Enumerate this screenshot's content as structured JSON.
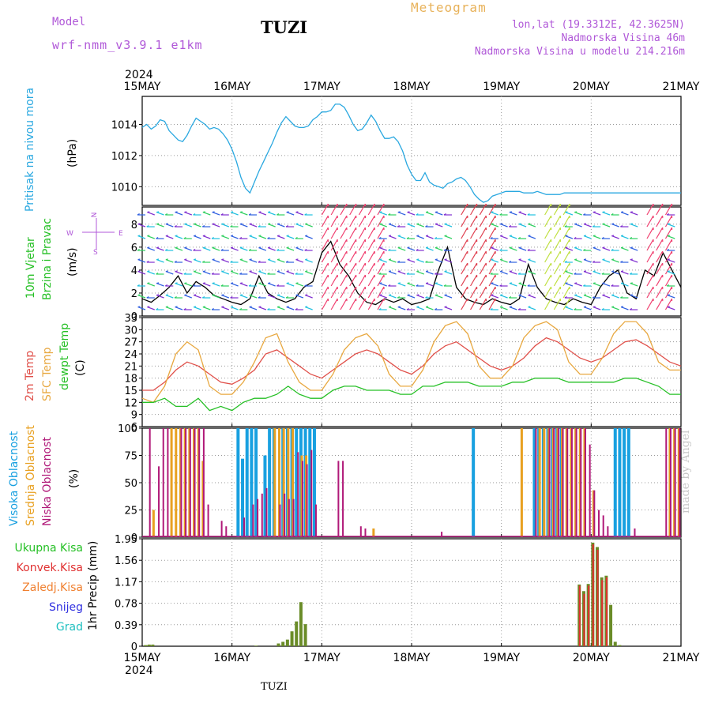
{
  "header": {
    "model_label": "Model",
    "model_name": "wrf-nmm_v3.9.1 e1km",
    "station": "TUZI",
    "meteogram_label": "Meteogram",
    "coords": "lon,lat (19.3312E, 42.3625N)",
    "elevation": "Nadmorska Visina 46m",
    "model_elevation": "Nadmorska Visina u modelu 214.216m",
    "year": "2024"
  },
  "footer": {
    "station": "TUZI",
    "credit": "made by Angel"
  },
  "time_axis": {
    "labels": [
      "15MAY",
      "16MAY",
      "17MAY",
      "18MAY",
      "19MAY",
      "20MAY",
      "21MAY"
    ],
    "year": "2024"
  },
  "panels": {
    "pressure": {
      "ylabel_main": "Pritisak na nivou mora",
      "unit": "(hPa)"
    },
    "wind": {
      "ylabel_a": "10m Vjetar",
      "ylabel_b": "Brzina i Pravac",
      "unit": "(m/s)",
      "compass_top": "N",
      "compass_w": "W",
      "compass_e": "E",
      "compass_s": "S"
    },
    "temp": {
      "label_2m": "2m Temp",
      "label_sfc": "SFC Temp",
      "label_dew": "dewpt Temp",
      "unit": "(C)"
    },
    "cloud": {
      "label_high": "Visoka Oblacnost",
      "label_mid": "Srednja Oblacnost",
      "label_low": "Niska Oblacnost",
      "unit": "(%)"
    },
    "precip": {
      "unit": "1hr Precip (mm)",
      "legend": [
        "Ukupna Kisa",
        "Konvek.Kisa",
        "Zaledj.Kisa",
        "Snijeg",
        "Grad"
      ]
    }
  },
  "colors": {
    "pressure": "#2aa8e0",
    "temp2m": "#e0504a",
    "sfc": "#e8a840",
    "dew": "#26c026",
    "high_cloud": "#18a0e0",
    "mid_cloud": "#e8a020",
    "low_cloud": "#b01878",
    "total_rain": "#6a8c28",
    "conv_rain": "#e03030",
    "frz_rain": "#f08030",
    "snow": "#3030e0",
    "hail": "#20c0c0",
    "header": "#b058d8",
    "meteogram": "#e8b25a"
  },
  "chart_data": [
    {
      "type": "line",
      "panel": "pressure",
      "ylim": [
        1008.8,
        1015.8
      ],
      "yticks": [
        "1010",
        "1012",
        "1014"
      ],
      "ytick_values": [
        1010,
        1012,
        1014
      ],
      "x_days": [
        0,
        0.05,
        0.1,
        0.15,
        0.2,
        0.25,
        0.3,
        0.35,
        0.4,
        0.45,
        0.5,
        0.55,
        0.6,
        0.65,
        0.7,
        0.75,
        0.8,
        0.85,
        0.9,
        0.95,
        1.0,
        1.05,
        1.1,
        1.15,
        1.2,
        1.25,
        1.3,
        1.35,
        1.4,
        1.45,
        1.5,
        1.55,
        1.6,
        1.65,
        1.7,
        1.75,
        1.8,
        1.85,
        1.9,
        1.95,
        2.0,
        2.05,
        2.1,
        2.15,
        2.2,
        2.25,
        2.3,
        2.35,
        2.4,
        2.45,
        2.5,
        2.55,
        2.6,
        2.65,
        2.7,
        2.75,
        2.8,
        2.85,
        2.9,
        2.95,
        3.0,
        3.05,
        3.1,
        3.15,
        3.2,
        3.25,
        3.3,
        3.35,
        3.4,
        3.45,
        3.5,
        3.55,
        3.6,
        3.65,
        3.7,
        3.75,
        3.8,
        3.85,
        3.9,
        3.95,
        4.0,
        4.05,
        4.1,
        4.15,
        4.2,
        4.25,
        4.3,
        4.35,
        4.4,
        4.45,
        4.5,
        4.55,
        4.6,
        4.65,
        4.7,
        4.75,
        4.8,
        4.85,
        4.9,
        4.95,
        5.0,
        5.05,
        5.1,
        5.15,
        5.2,
        5.25,
        5.3,
        5.35,
        5.4,
        5.45,
        5.5,
        5.55,
        5.6,
        5.65,
        5.7,
        5.75,
        5.8,
        5.85,
        5.9,
        5.95,
        6.0
      ],
      "series": [
        {
          "values": [
            1013.8,
            1014.0,
            1013.7,
            1013.9,
            1014.3,
            1014.2,
            1013.6,
            1013.3,
            1013.0,
            1012.9,
            1013.3,
            1013.9,
            1014.4,
            1014.2,
            1014.0,
            1013.7,
            1013.8,
            1013.7,
            1013.4,
            1013.0,
            1012.4,
            1011.6,
            1010.6,
            1009.9,
            1009.6,
            1010.3,
            1011.0,
            1011.6,
            1012.2,
            1012.8,
            1013.5,
            1014.1,
            1014.5,
            1014.2,
            1013.9,
            1013.8,
            1013.8,
            1013.9,
            1014.3,
            1014.5,
            1014.8,
            1014.8,
            1014.9,
            1015.3,
            1015.3,
            1015.1,
            1014.6,
            1014.0,
            1013.6,
            1013.7,
            1014.1,
            1014.6,
            1014.2,
            1013.6,
            1013.1,
            1013.1,
            1013.2,
            1012.9,
            1012.3,
            1011.4,
            1010.8,
            1010.4,
            1010.4,
            1010.9,
            1010.3,
            1010.1,
            1010.0,
            1009.9,
            1010.2,
            1010.3,
            1010.5,
            1010.6,
            1010.4,
            1010.0,
            1009.5,
            1009.2,
            1009.0,
            1009.1,
            1009.4,
            1009.5,
            1009.6,
            1009.7,
            1009.7,
            1009.7,
            1009.7,
            1009.6,
            1009.6,
            1009.6,
            1009.7,
            1009.6,
            1009.5,
            1009.5,
            1009.5,
            1009.5,
            1009.6,
            1009.6,
            1009.6,
            1009.6,
            1009.6,
            1009.6,
            1009.6,
            1009.6,
            1009.6,
            1009.6,
            1009.6,
            1009.6,
            1009.6,
            1009.6,
            1009.6,
            1009.6,
            1009.6,
            1009.6,
            1009.6,
            1009.6,
            1009.6,
            1009.6,
            1009.6,
            1009.6,
            1009.6,
            1009.6,
            1009.6
          ]
        }
      ]
    },
    {
      "type": "line",
      "panel": "wind_speed",
      "ylim": [
        0,
        9.5
      ],
      "yticks": [
        "0",
        "2",
        "4",
        "6",
        "8"
      ],
      "ytick_values": [
        0,
        2,
        4,
        6,
        8
      ],
      "x_days": [
        0,
        0.1,
        0.2,
        0.3,
        0.4,
        0.5,
        0.6,
        0.7,
        0.8,
        0.9,
        1.0,
        1.1,
        1.2,
        1.3,
        1.4,
        1.5,
        1.6,
        1.7,
        1.8,
        1.9,
        2.0,
        2.1,
        2.2,
        2.3,
        2.4,
        2.5,
        2.6,
        2.7,
        2.8,
        2.9,
        3.0,
        3.1,
        3.2,
        3.3,
        3.4,
        3.5,
        3.6,
        3.7,
        3.8,
        3.9,
        4.0,
        4.1,
        4.2,
        4.3,
        4.4,
        4.5,
        4.6,
        4.7,
        4.8,
        4.9,
        5.0,
        5.1,
        5.2,
        5.3,
        5.4,
        5.5,
        5.6,
        5.7,
        5.8,
        5.9,
        6.0
      ],
      "series": [
        {
          "name": "",
          "values": [
            1.5,
            1.2,
            1.8,
            2.5,
            3.5,
            2.0,
            3.0,
            2.5,
            1.8,
            1.5,
            1.2,
            1.0,
            1.5,
            3.5,
            2.0,
            1.5,
            1.2,
            1.5,
            2.5,
            3.0,
            5.5,
            6.5,
            4.5,
            3.5,
            2.0,
            1.2,
            1.0,
            1.5,
            1.2,
            1.5,
            1.0,
            1.2,
            1.5,
            4.0,
            6.0,
            2.5,
            1.5,
            1.2,
            1.0,
            1.5,
            1.2,
            1.0,
            1.5,
            4.5,
            2.5,
            1.5,
            1.2,
            1.0,
            1.5,
            1.2,
            1.0,
            2.5,
            3.5,
            4.0,
            2.0,
            1.5,
            4.0,
            3.5,
            5.5,
            4.0,
            2.5
          ]
        }
      ]
    },
    {
      "type": "line",
      "panel": "temperature",
      "ylim": [
        6,
        33
      ],
      "yticks": [
        "6",
        "9",
        "12",
        "15",
        "18",
        "21",
        "24",
        "27",
        "30",
        "33"
      ],
      "ytick_values": [
        6,
        9,
        12,
        15,
        18,
        21,
        24,
        27,
        30,
        33
      ],
      "x_days": [
        0,
        0.125,
        0.25,
        0.375,
        0.5,
        0.625,
        0.75,
        0.875,
        1.0,
        1.125,
        1.25,
        1.375,
        1.5,
        1.625,
        1.75,
        1.875,
        2.0,
        2.125,
        2.25,
        2.375,
        2.5,
        2.625,
        2.75,
        2.875,
        3.0,
        3.125,
        3.25,
        3.375,
        3.5,
        3.625,
        3.75,
        3.875,
        4.0,
        4.125,
        4.25,
        4.375,
        4.5,
        4.625,
        4.75,
        4.875,
        5.0,
        5.125,
        5.25,
        5.375,
        5.5,
        5.625,
        5.75,
        5.875,
        6.0
      ],
      "series": [
        {
          "name": "2m Temp",
          "values": [
            15,
            15,
            17,
            20,
            22,
            21,
            19,
            17,
            16.5,
            18,
            20,
            24,
            25,
            23,
            21,
            19,
            18,
            20,
            22,
            24,
            25,
            24,
            22,
            20,
            19,
            21,
            24,
            26,
            27,
            25,
            23,
            21,
            20,
            21,
            23,
            26,
            28,
            27,
            25,
            23,
            22,
            23,
            25,
            27,
            27.5,
            26,
            24,
            22,
            21
          ]
        },
        {
          "name": "SFC Temp",
          "values": [
            13,
            12,
            16,
            24,
            27,
            25,
            16,
            14,
            14,
            17,
            22,
            28,
            29,
            22,
            17,
            15,
            15,
            19,
            25,
            28,
            29,
            26,
            19,
            16,
            16,
            20,
            27,
            31,
            32,
            29,
            21,
            18,
            18,
            21,
            28,
            31,
            32,
            30,
            22,
            19,
            19,
            23,
            29,
            32,
            32,
            29,
            22,
            20,
            20
          ]
        },
        {
          "name": "dewpt Temp",
          "values": [
            12,
            12,
            13,
            11,
            11,
            13,
            10,
            11,
            10,
            12,
            13,
            13,
            14,
            16,
            14,
            13,
            13,
            15,
            16,
            16,
            15,
            15,
            15,
            14,
            14,
            16,
            16,
            17,
            17,
            17,
            16,
            16,
            16,
            17,
            17,
            18,
            18,
            18,
            17,
            17,
            17,
            17,
            17,
            18,
            18,
            17,
            16,
            14,
            14
          ]
        }
      ]
    },
    {
      "type": "bar",
      "panel": "cloud_cover",
      "ylim": [
        0,
        100
      ],
      "yticks": [
        "0",
        "25",
        "50",
        "75",
        "100"
      ],
      "ytick_values": [
        0,
        25,
        50,
        75,
        100
      ],
      "series": [
        {
          "name": "Visoka Oblacnost",
          "x_days": [
            1.05,
            1.1,
            1.15,
            1.2,
            1.25,
            1.35,
            1.4,
            1.45,
            1.55,
            1.6,
            1.65,
            1.7,
            1.75,
            1.8,
            1.85,
            1.9,
            3.67,
            4.35,
            4.4,
            4.45,
            4.5,
            4.55,
            4.6,
            4.65,
            5.25,
            5.3,
            5.35,
            5.4
          ],
          "values": [
            100,
            72,
            100,
            100,
            100,
            75,
            100,
            100,
            100,
            100,
            100,
            100,
            100,
            100,
            100,
            100,
            100,
            100,
            100,
            100,
            100,
            100,
            100,
            100,
            100,
            100,
            100,
            100
          ]
        },
        {
          "name": "Srednja Oblacnost",
          "x_days": [
            0.1,
            0.3,
            0.35,
            0.4,
            0.45,
            0.5,
            0.55,
            0.6,
            0.65,
            1.45,
            1.5,
            1.55,
            1.6,
            1.65,
            1.75,
            1.8,
            2.55,
            4.2,
            4.4,
            4.45,
            4.5,
            4.55,
            4.6,
            4.65,
            4.7,
            4.75,
            4.8,
            4.85,
            4.9,
            5.0,
            5.85,
            5.9,
            5.95
          ],
          "values": [
            25,
            100,
            100,
            100,
            100,
            100,
            100,
            100,
            70,
            100,
            100,
            100,
            100,
            100,
            75,
            75,
            8,
            100,
            100,
            100,
            100,
            100,
            100,
            100,
            100,
            100,
            100,
            100,
            100,
            43,
            100,
            100,
            100
          ]
        },
        {
          "name": "Niska Oblacnost",
          "x_days": [
            0.05,
            0.15,
            0.2,
            0.25,
            0.4,
            0.45,
            0.5,
            0.55,
            0.6,
            0.65,
            0.7,
            0.85,
            0.9,
            1.1,
            1.2,
            1.25,
            1.3,
            1.35,
            1.5,
            1.55,
            1.6,
            1.65,
            1.7,
            1.75,
            1.8,
            1.85,
            1.9,
            2.15,
            2.2,
            2.4,
            2.45,
            3.3,
            4.35,
            4.5,
            4.55,
            4.6,
            4.65,
            4.7,
            4.75,
            4.8,
            4.85,
            4.9,
            4.95,
            5.0,
            5.05,
            5.1,
            5.15,
            5.45,
            5.8,
            5.85,
            5.9,
            5.95
          ],
          "values": [
            100,
            65,
            100,
            100,
            100,
            100,
            100,
            100,
            100,
            100,
            30,
            15,
            10,
            18,
            30,
            35,
            40,
            45,
            30,
            40,
            35,
            35,
            78,
            70,
            67,
            80,
            30,
            70,
            70,
            10,
            8,
            5,
            100,
            100,
            100,
            100,
            100,
            100,
            100,
            100,
            100,
            100,
            85,
            43,
            25,
            20,
            10,
            8,
            100,
            100,
            100,
            100
          ]
        }
      ]
    },
    {
      "type": "bar",
      "panel": "precipitation",
      "ylim": [
        0,
        1.95
      ],
      "yticks": [
        "0",
        "0.39",
        "0.78",
        "1.17",
        "1.56",
        "1.95"
      ],
      "ytick_values": [
        0,
        0.39,
        0.78,
        1.17,
        1.56,
        1.95
      ],
      "series": [
        {
          "name": "Ukupna Kisa",
          "x_days": [
            0.02,
            0.06,
            0.1,
            1.25,
            1.5,
            1.55,
            1.6,
            1.65,
            1.7,
            1.75,
            1.8,
            4.85,
            4.9,
            4.95,
            5.0,
            5.05,
            5.1,
            5.15,
            5.2,
            5.25,
            5.3
          ],
          "values": [
            0.02,
            0.03,
            0.03,
            0.01,
            0.05,
            0.08,
            0.12,
            0.27,
            0.45,
            0.8,
            0.4,
            1.12,
            1.0,
            1.13,
            1.88,
            1.8,
            1.25,
            1.28,
            0.75,
            0.08,
            0.02
          ]
        },
        {
          "name": "Konvek.Kisa",
          "x_days": [
            4.85,
            4.9,
            4.95,
            5.0,
            5.05,
            5.1,
            5.15
          ],
          "values": [
            1.1,
            0.95,
            1.1,
            1.85,
            1.75,
            1.2,
            1.25
          ]
        }
      ]
    }
  ]
}
